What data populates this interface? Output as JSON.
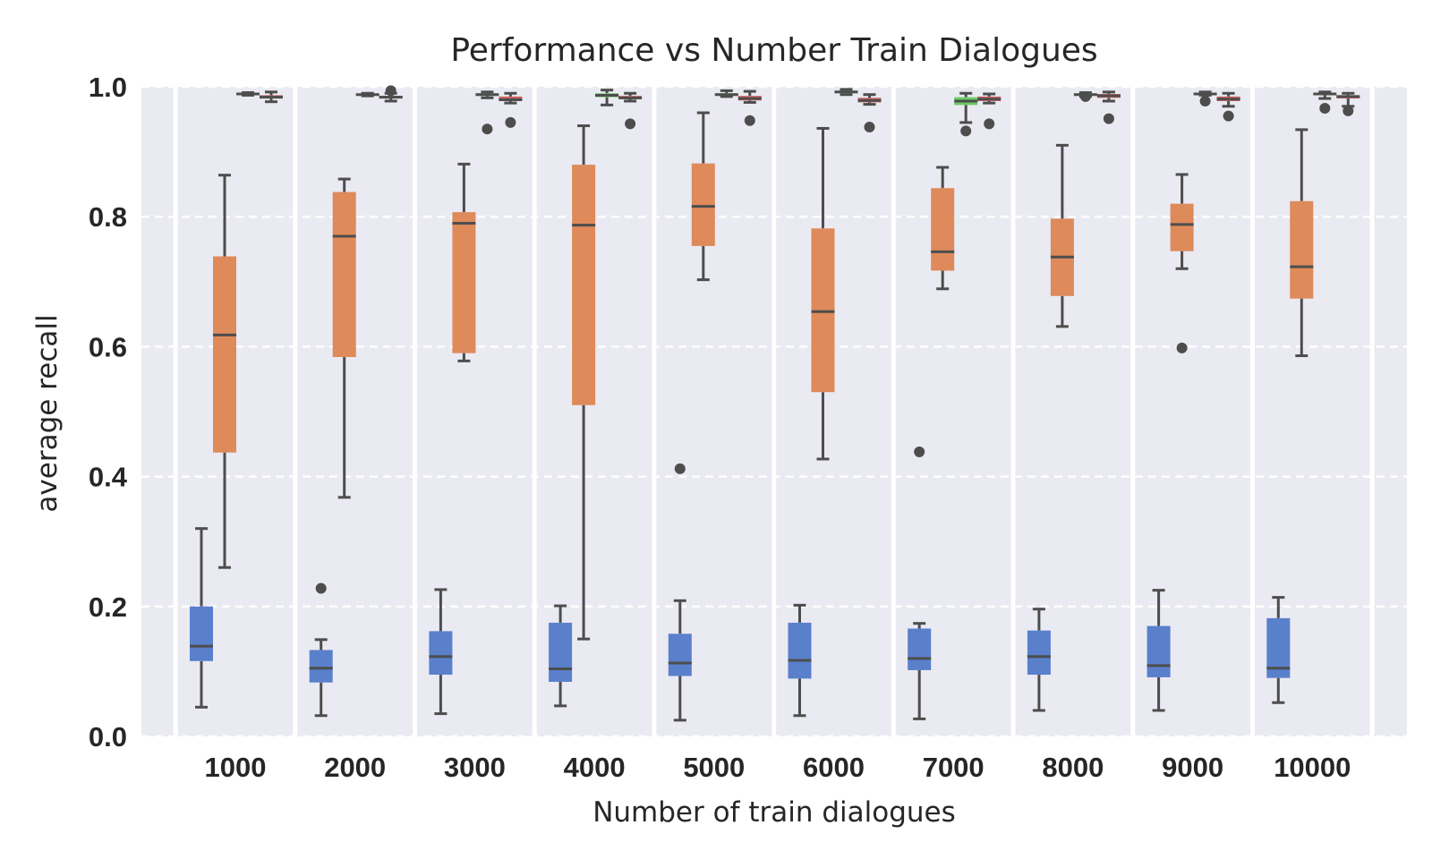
{
  "chart_data": {
    "type": "box",
    "title": "Performance vs Number Train Dialogues",
    "xlabel": "Number of train dialogues",
    "ylabel": "average recall",
    "ylim": [
      0,
      1
    ],
    "yticks": [
      "0.0",
      "0.2",
      "0.4",
      "0.6",
      "0.8",
      "1.0"
    ],
    "grid": "horizontal-dashed",
    "background": "#eaeaf2",
    "categories": [
      "1000",
      "2000",
      "3000",
      "4000",
      "5000",
      "6000",
      "7000",
      "8000",
      "9000",
      "10000"
    ],
    "series_colors": [
      "#5a80cc",
      "#de8a5a",
      "#6acc64",
      "#d0605e"
    ],
    "groups": [
      {
        "category": "1000",
        "boxes": [
          {
            "whislo": 0.045,
            "q1": 0.116,
            "med": 0.139,
            "q3": 0.2,
            "whishi": 0.32,
            "fliers": []
          },
          {
            "whislo": 0.26,
            "q1": 0.437,
            "med": 0.618,
            "q3": 0.739,
            "whishi": 0.864,
            "fliers": []
          },
          {
            "whislo": 0.987,
            "q1": 0.988,
            "med": 0.989,
            "q3": 0.99,
            "whishi": 0.991,
            "fliers": []
          },
          {
            "whislo": 0.977,
            "q1": 0.982,
            "med": 0.984,
            "q3": 0.987,
            "whishi": 0.992,
            "fliers": []
          }
        ]
      },
      {
        "category": "2000",
        "boxes": [
          {
            "whislo": 0.032,
            "q1": 0.083,
            "med": 0.105,
            "q3": 0.133,
            "whishi": 0.149,
            "fliers": [
              0.228
            ]
          },
          {
            "whislo": 0.368,
            "q1": 0.584,
            "med": 0.77,
            "q3": 0.838,
            "whishi": 0.858,
            "fliers": []
          },
          {
            "whislo": 0.986,
            "q1": 0.987,
            "med": 0.988,
            "q3": 0.989,
            "whishi": 0.99,
            "fliers": []
          },
          {
            "whislo": 0.978,
            "q1": 0.982,
            "med": 0.984,
            "q3": 0.986,
            "whishi": 0.99,
            "fliers": [
              0.994
            ]
          }
        ]
      },
      {
        "category": "3000",
        "boxes": [
          {
            "whislo": 0.035,
            "q1": 0.095,
            "med": 0.123,
            "q3": 0.162,
            "whishi": 0.226,
            "fliers": []
          },
          {
            "whislo": 0.578,
            "q1": 0.59,
            "med": 0.79,
            "q3": 0.807,
            "whishi": 0.881,
            "fliers": []
          },
          {
            "whislo": 0.983,
            "q1": 0.986,
            "med": 0.988,
            "q3": 0.99,
            "whishi": 0.992,
            "fliers": [
              0.935
            ]
          },
          {
            "whislo": 0.975,
            "q1": 0.978,
            "med": 0.98,
            "q3": 0.985,
            "whishi": 0.99,
            "fliers": [
              0.945
            ]
          }
        ]
      },
      {
        "category": "4000",
        "boxes": [
          {
            "whislo": 0.047,
            "q1": 0.084,
            "med": 0.104,
            "q3": 0.175,
            "whishi": 0.201,
            "fliers": []
          },
          {
            "whislo": 0.15,
            "q1": 0.51,
            "med": 0.787,
            "q3": 0.88,
            "whishi": 0.94,
            "fliers": []
          },
          {
            "whislo": 0.972,
            "q1": 0.984,
            "med": 0.987,
            "q3": 0.99,
            "whishi": 0.995,
            "fliers": []
          },
          {
            "whislo": 0.978,
            "q1": 0.981,
            "med": 0.983,
            "q3": 0.986,
            "whishi": 0.99,
            "fliers": [
              0.943
            ]
          }
        ]
      },
      {
        "category": "5000",
        "boxes": [
          {
            "whislo": 0.025,
            "q1": 0.093,
            "med": 0.113,
            "q3": 0.158,
            "whishi": 0.209,
            "fliers": [
              0.412
            ]
          },
          {
            "whislo": 0.703,
            "q1": 0.755,
            "med": 0.816,
            "q3": 0.882,
            "whishi": 0.96,
            "fliers": []
          },
          {
            "whislo": 0.985,
            "q1": 0.987,
            "med": 0.988,
            "q3": 0.99,
            "whishi": 0.994,
            "fliers": []
          },
          {
            "whislo": 0.976,
            "q1": 0.979,
            "med": 0.982,
            "q3": 0.986,
            "whishi": 0.993,
            "fliers": [
              0.948
            ]
          }
        ]
      },
      {
        "category": "6000",
        "boxes": [
          {
            "whislo": 0.032,
            "q1": 0.089,
            "med": 0.117,
            "q3": 0.175,
            "whishi": 0.202,
            "fliers": []
          },
          {
            "whislo": 0.427,
            "q1": 0.53,
            "med": 0.654,
            "q3": 0.782,
            "whishi": 0.936,
            "fliers": []
          },
          {
            "whislo": 0.988,
            "q1": 0.99,
            "med": 0.992,
            "q3": 0.994,
            "whishi": 0.996,
            "fliers": []
          },
          {
            "whislo": 0.973,
            "q1": 0.976,
            "med": 0.979,
            "q3": 0.983,
            "whishi": 0.988,
            "fliers": [
              0.938
            ]
          }
        ]
      },
      {
        "category": "7000",
        "boxes": [
          {
            "whislo": 0.027,
            "q1": 0.102,
            "med": 0.12,
            "q3": 0.166,
            "whishi": 0.174,
            "fliers": [
              0.438
            ]
          },
          {
            "whislo": 0.689,
            "q1": 0.717,
            "med": 0.746,
            "q3": 0.844,
            "whishi": 0.876,
            "fliers": []
          },
          {
            "whislo": 0.945,
            "q1": 0.972,
            "med": 0.978,
            "q3": 0.984,
            "whishi": 0.99,
            "fliers": [
              0.932
            ]
          },
          {
            "whislo": 0.975,
            "q1": 0.978,
            "med": 0.981,
            "q3": 0.985,
            "whishi": 0.989,
            "fliers": [
              0.943
            ]
          }
        ]
      },
      {
        "category": "8000",
        "boxes": [
          {
            "whislo": 0.04,
            "q1": 0.095,
            "med": 0.123,
            "q3": 0.163,
            "whishi": 0.196,
            "fliers": []
          },
          {
            "whislo": 0.631,
            "q1": 0.678,
            "med": 0.738,
            "q3": 0.797,
            "whishi": 0.91,
            "fliers": []
          },
          {
            "whislo": 0.985,
            "q1": 0.987,
            "med": 0.988,
            "q3": 0.99,
            "whishi": 0.991,
            "fliers": [
              0.985
            ]
          },
          {
            "whislo": 0.978,
            "q1": 0.983,
            "med": 0.986,
            "q3": 0.989,
            "whishi": 0.992,
            "fliers": [
              0.951
            ]
          }
        ]
      },
      {
        "category": "9000",
        "boxes": [
          {
            "whislo": 0.04,
            "q1": 0.091,
            "med": 0.109,
            "q3": 0.17,
            "whishi": 0.225,
            "fliers": []
          },
          {
            "whislo": 0.72,
            "q1": 0.747,
            "med": 0.788,
            "q3": 0.82,
            "whishi": 0.865,
            "fliers": [
              0.598
            ]
          },
          {
            "whislo": 0.987,
            "q1": 0.988,
            "med": 0.989,
            "q3": 0.991,
            "whishi": 0.992,
            "fliers": [
              0.978
            ]
          },
          {
            "whislo": 0.97,
            "q1": 0.978,
            "med": 0.981,
            "q3": 0.985,
            "whishi": 0.99,
            "fliers": [
              0.955
            ]
          }
        ]
      },
      {
        "category": "10000",
        "boxes": [
          {
            "whislo": 0.052,
            "q1": 0.09,
            "med": 0.105,
            "q3": 0.182,
            "whishi": 0.214,
            "fliers": []
          },
          {
            "whislo": 0.586,
            "q1": 0.674,
            "med": 0.723,
            "q3": 0.824,
            "whishi": 0.934,
            "fliers": []
          },
          {
            "whislo": 0.982,
            "q1": 0.987,
            "med": 0.989,
            "q3": 0.99,
            "whishi": 0.992,
            "fliers": [
              0.967
            ]
          },
          {
            "whislo": 0.97,
            "q1": 0.982,
            "med": 0.985,
            "q3": 0.987,
            "whishi": 0.99,
            "fliers": [
              0.963
            ]
          }
        ]
      }
    ]
  }
}
